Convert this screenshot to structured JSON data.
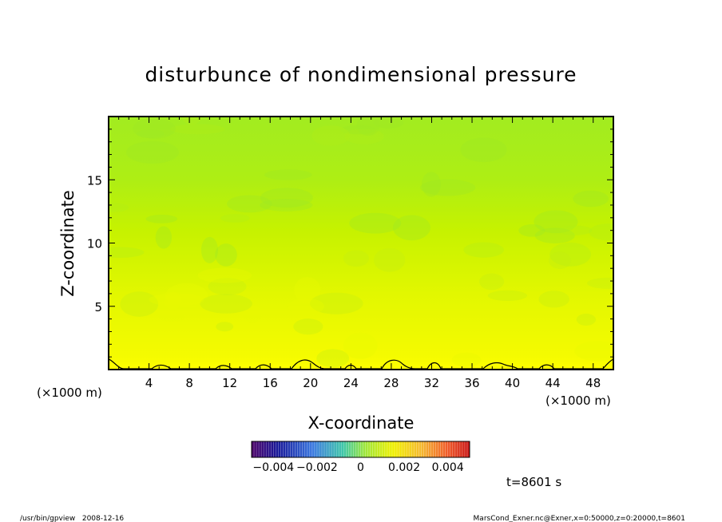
{
  "chart_data": {
    "type": "heatmap",
    "title": "disturbunce of nondimensional pressure",
    "xlabel": "X-coordinate",
    "ylabel": "Z-coordinate",
    "x_unit_left": "(×1000 m)",
    "x_unit_right": "(×1000 m)",
    "xlim": [
      0,
      50
    ],
    "ylim": [
      0,
      20
    ],
    "x_ticks": [
      4,
      8,
      12,
      16,
      20,
      24,
      28,
      32,
      36,
      40,
      44,
      48
    ],
    "x_tick_labels": [
      "4",
      "8",
      "12",
      "16",
      "20",
      "24",
      "28",
      "32",
      "36",
      "40",
      "44",
      "48"
    ],
    "y_ticks": [
      5,
      10,
      15
    ],
    "y_tick_labels": [
      "5",
      "10",
      "15"
    ],
    "z_profile": [
      {
        "z": 0,
        "value": 0.0011
      },
      {
        "z": 1,
        "value": 0.0007
      },
      {
        "z": 3,
        "value": 0.0004
      },
      {
        "z": 6,
        "value": 0.0002
      },
      {
        "z": 9,
        "value": 0.0001
      },
      {
        "z": 12,
        "value": -0.0002
      },
      {
        "z": 16,
        "value": -0.0003
      },
      {
        "z": 20,
        "value": -0.0003
      }
    ],
    "colorbar": {
      "min": -0.005,
      "max": 0.005,
      "tick_labels": [
        "−0.004",
        "−0.002",
        "0",
        "0.002",
        "0.004"
      ],
      "ticks": [
        -0.004,
        -0.002,
        0,
        0.002,
        0.004
      ]
    },
    "time_label": "t=8601 s",
    "colors": {
      "field_bottom": "#ffff00",
      "field_mid": "#d8f700",
      "field_top": "#a4ed1e"
    }
  },
  "footer": {
    "left": "/usr/bin/gpview   2008-12-16",
    "right": "MarsCond_Exner.nc@Exner,x=0:50000,z=0:20000,t=8601"
  }
}
